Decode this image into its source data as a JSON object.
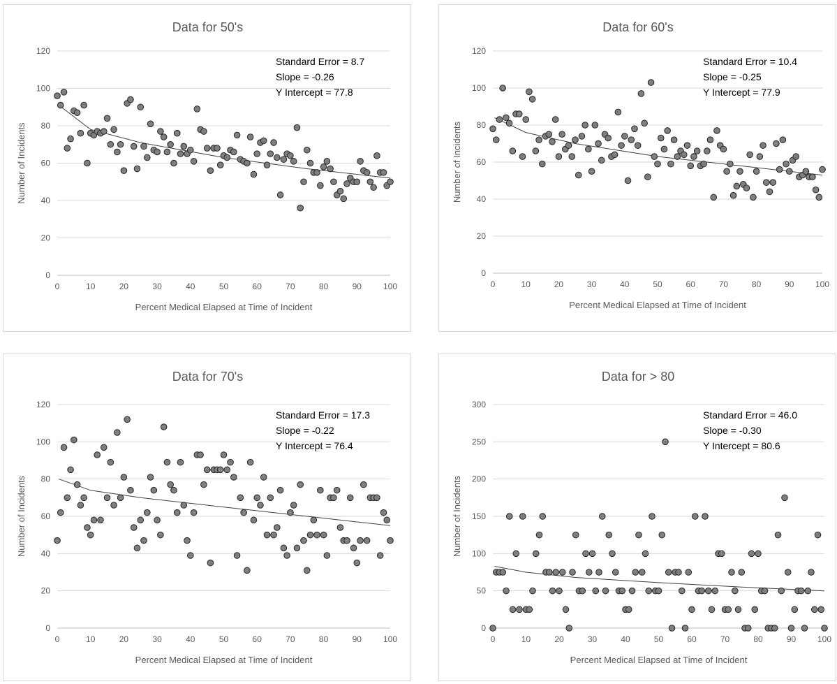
{
  "chart_data": [
    {
      "type": "scatter",
      "title": "Data for 50's",
      "xlabel": "Percent Medical Elapsed at Time of Incident",
      "ylabel": "Number of Incidents",
      "xlim": [
        0,
        100
      ],
      "ylim": [
        0,
        120
      ],
      "xticks": [
        0,
        10,
        20,
        30,
        40,
        50,
        60,
        70,
        80,
        90,
        100
      ],
      "yticks": [
        0,
        20,
        40,
        60,
        80,
        100,
        120
      ],
      "grid": "horizontal",
      "annotations": [
        "Standard Error = 8.7",
        "Slope = -0.26",
        "Y Intercept = 77.8"
      ],
      "trend": "logarithmic",
      "trend_points": [
        [
          0.5,
          91
        ],
        [
          10,
          78
        ],
        [
          25,
          71
        ],
        [
          50,
          63
        ],
        [
          75,
          57
        ],
        [
          100,
          52
        ]
      ],
      "x": [
        0,
        1,
        2,
        3,
        4,
        5,
        6,
        7,
        8,
        9,
        10,
        11,
        12,
        13,
        14,
        15,
        16,
        17,
        18,
        19,
        20,
        21,
        22,
        23,
        24,
        25,
        26,
        27,
        28,
        29,
        30,
        31,
        32,
        33,
        34,
        35,
        36,
        37,
        38,
        39,
        40,
        41,
        42,
        43,
        44,
        45,
        46,
        47,
        48,
        49,
        50,
        51,
        52,
        53,
        54,
        55,
        56,
        57,
        58,
        59,
        60,
        61,
        62,
        63,
        64,
        65,
        66,
        67,
        68,
        69,
        70,
        71,
        72,
        73,
        74,
        75,
        76,
        77,
        78,
        79,
        80,
        81,
        82,
        83,
        84,
        85,
        86,
        87,
        88,
        89,
        90,
        91,
        92,
        93,
        94,
        95,
        96,
        97,
        98,
        99,
        100
      ],
      "y": [
        96,
        91,
        98,
        68,
        73,
        88,
        87,
        76,
        91,
        60,
        76,
        75,
        77,
        76,
        77,
        84,
        70,
        78,
        66,
        70,
        56,
        92,
        94,
        69,
        57,
        90,
        69,
        63,
        81,
        67,
        66,
        77,
        74,
        66,
        70,
        60,
        76,
        65,
        69,
        65,
        67,
        61,
        89,
        78,
        77,
        68,
        56,
        68,
        68,
        59,
        64,
        63,
        67,
        66,
        75,
        62,
        61,
        60,
        74,
        54,
        65,
        71,
        72,
        59,
        65,
        71,
        63,
        43,
        62,
        65,
        64,
        61,
        79,
        36,
        50,
        67,
        60,
        55,
        55,
        48,
        58,
        61,
        57,
        50,
        43,
        45,
        41,
        49,
        52,
        50,
        50,
        61,
        56,
        55,
        50,
        47,
        64,
        55,
        55,
        48,
        50
      ]
    },
    {
      "type": "scatter",
      "title": "Data for 60's",
      "xlabel": "Percent Medical Elapsed at Time of Incident",
      "ylabel": "Number of Incidents",
      "xlim": [
        0,
        100
      ],
      "ylim": [
        0,
        120
      ],
      "xticks": [
        0,
        10,
        20,
        30,
        40,
        50,
        60,
        70,
        80,
        90,
        100
      ],
      "yticks": [
        0,
        20,
        40,
        60,
        80,
        100,
        120
      ],
      "grid": "horizontal",
      "annotations": [
        "Standard Error = 10.4",
        "Slope = -0.25",
        "Y Intercept = 77.9"
      ],
      "trend": "logarithmic",
      "trend_points": [
        [
          0.5,
          84
        ],
        [
          10,
          76
        ],
        [
          25,
          70
        ],
        [
          50,
          63
        ],
        [
          75,
          58
        ],
        [
          100,
          53
        ]
      ],
      "x": [
        0,
        1,
        2,
        3,
        4,
        5,
        6,
        7,
        8,
        9,
        10,
        11,
        12,
        13,
        14,
        15,
        16,
        17,
        18,
        19,
        20,
        21,
        22,
        23,
        24,
        25,
        26,
        27,
        28,
        29,
        30,
        31,
        32,
        33,
        34,
        35,
        36,
        37,
        38,
        39,
        40,
        41,
        42,
        43,
        44,
        45,
        46,
        47,
        48,
        49,
        50,
        51,
        52,
        53,
        54,
        55,
        56,
        57,
        58,
        59,
        60,
        61,
        62,
        63,
        64,
        65,
        66,
        67,
        68,
        69,
        70,
        71,
        72,
        73,
        74,
        75,
        76,
        77,
        78,
        79,
        80,
        81,
        82,
        83,
        84,
        85,
        86,
        87,
        88,
        89,
        90,
        91,
        92,
        93,
        94,
        95,
        96,
        97,
        98,
        99,
        100
      ],
      "y": [
        78,
        72,
        83,
        100,
        84,
        81,
        66,
        86,
        86,
        63,
        83,
        98,
        94,
        66,
        72,
        59,
        74,
        75,
        71,
        83,
        63,
        75,
        67,
        69,
        63,
        72,
        53,
        74,
        80,
        67,
        55,
        80,
        70,
        61,
        75,
        73,
        63,
        64,
        87,
        69,
        74,
        50,
        72,
        78,
        69,
        97,
        81,
        52,
        103,
        63,
        59,
        73,
        67,
        77,
        59,
        72,
        63,
        66,
        64,
        69,
        58,
        63,
        66,
        58,
        59,
        66,
        72,
        41,
        77,
        69,
        67,
        55,
        59,
        42,
        47,
        55,
        48,
        46,
        64,
        41,
        55,
        63,
        69,
        49,
        44,
        49,
        70,
        56,
        72,
        59,
        55,
        61,
        63,
        52,
        53,
        55,
        52,
        52,
        45,
        41,
        56
      ]
    },
    {
      "type": "scatter",
      "title": "Data for 70's",
      "xlabel": "Percent Medical Elapsed at Time of Incident",
      "ylabel": "Number of Incidents",
      "xlim": [
        0,
        100
      ],
      "ylim": [
        0,
        120
      ],
      "xticks": [
        0,
        10,
        20,
        30,
        40,
        50,
        60,
        70,
        80,
        90,
        100
      ],
      "yticks": [
        0,
        20,
        40,
        60,
        80,
        100,
        120
      ],
      "grid": "horizontal",
      "annotations": [
        "Standard Error = 17.3",
        "Slope = -0.22",
        "Y Intercept = 76.4"
      ],
      "trend": "logarithmic",
      "trend_points": [
        [
          0.5,
          80
        ],
        [
          10,
          74
        ],
        [
          25,
          70
        ],
        [
          50,
          65
        ],
        [
          75,
          60
        ],
        [
          100,
          55
        ]
      ],
      "x": [
        0,
        1,
        2,
        3,
        4,
        5,
        6,
        7,
        8,
        9,
        10,
        11,
        12,
        13,
        14,
        15,
        16,
        17,
        18,
        19,
        20,
        21,
        22,
        23,
        24,
        25,
        26,
        27,
        28,
        29,
        30,
        31,
        32,
        33,
        34,
        35,
        36,
        37,
        38,
        39,
        40,
        41,
        42,
        43,
        44,
        45,
        46,
        47,
        48,
        49,
        50,
        51,
        52,
        53,
        54,
        55,
        56,
        57,
        58,
        59,
        60,
        61,
        62,
        63,
        64,
        65,
        66,
        67,
        68,
        69,
        70,
        71,
        72,
        73,
        74,
        75,
        76,
        77,
        78,
        79,
        80,
        81,
        82,
        83,
        84,
        85,
        86,
        87,
        88,
        89,
        90,
        91,
        92,
        93,
        94,
        95,
        96,
        97,
        98,
        99,
        100
      ],
      "y": [
        47,
        62,
        97,
        70,
        85,
        101,
        77,
        66,
        70,
        54,
        50,
        58,
        93,
        58,
        97,
        70,
        89,
        66,
        105,
        70,
        81,
        112,
        74,
        54,
        43,
        58,
        47,
        62,
        81,
        74,
        58,
        50,
        108,
        89,
        77,
        74,
        62,
        89,
        66,
        47,
        39,
        62,
        93,
        93,
        77,
        85,
        35,
        85,
        85,
        85,
        93,
        85,
        89,
        81,
        39,
        70,
        62,
        31,
        89,
        58,
        70,
        66,
        81,
        50,
        70,
        50,
        54,
        74,
        43,
        39,
        62,
        66,
        43,
        77,
        47,
        31,
        50,
        58,
        50,
        74,
        50,
        39,
        70,
        70,
        74,
        54,
        47,
        47,
        70,
        43,
        35,
        47,
        77,
        47,
        70,
        70,
        70,
        39,
        62,
        58,
        47
      ]
    },
    {
      "type": "scatter",
      "title": "Data for > 80",
      "xlabel": "Percent Medical Elapsed at Time of Incident",
      "ylabel": "Number of Incidents",
      "xlim": [
        0,
        100
      ],
      "ylim": [
        0,
        300
      ],
      "xticks": [
        0,
        10,
        20,
        30,
        40,
        50,
        60,
        70,
        80,
        90,
        100
      ],
      "yticks": [
        0,
        50,
        100,
        150,
        200,
        250,
        300
      ],
      "grid": "horizontal",
      "annotations": [
        "Standard Error = 46.0",
        "Slope = -0.30",
        "Y Intercept = 80.6"
      ],
      "trend": "logarithmic",
      "trend_points": [
        [
          0.5,
          83
        ],
        [
          10,
          75
        ],
        [
          25,
          68
        ],
        [
          50,
          61
        ],
        [
          75,
          55
        ],
        [
          100,
          50
        ]
      ],
      "x": [
        0,
        1,
        2,
        3,
        4,
        5,
        6,
        7,
        8,
        9,
        10,
        11,
        12,
        13,
        14,
        15,
        16,
        17,
        18,
        19,
        20,
        21,
        22,
        23,
        24,
        25,
        26,
        27,
        28,
        29,
        30,
        31,
        32,
        33,
        34,
        35,
        36,
        37,
        38,
        39,
        40,
        41,
        42,
        43,
        44,
        45,
        46,
        47,
        48,
        49,
        50,
        51,
        52,
        53,
        54,
        55,
        56,
        57,
        58,
        59,
        60,
        61,
        62,
        63,
        64,
        65,
        66,
        67,
        68,
        69,
        70,
        71,
        72,
        73,
        74,
        75,
        76,
        77,
        78,
        79,
        80,
        81,
        82,
        83,
        84,
        85,
        86,
        87,
        88,
        89,
        90,
        91,
        92,
        93,
        94,
        95,
        96,
        97,
        98,
        99,
        100
      ],
      "y": [
        0,
        75,
        75,
        75,
        50,
        150,
        25,
        100,
        25,
        150,
        25,
        25,
        50,
        100,
        125,
        150,
        75,
        75,
        50,
        75,
        50,
        75,
        25,
        0,
        75,
        125,
        50,
        50,
        100,
        75,
        100,
        50,
        75,
        150,
        50,
        125,
        100,
        75,
        50,
        50,
        25,
        25,
        50,
        75,
        125,
        75,
        100,
        50,
        150,
        50,
        50,
        125,
        250,
        75,
        0,
        75,
        75,
        50,
        0,
        75,
        25,
        150,
        50,
        50,
        150,
        50,
        25,
        50,
        100,
        100,
        25,
        25,
        75,
        50,
        25,
        75,
        0,
        0,
        100,
        25,
        100,
        50,
        50,
        0,
        0,
        0,
        125,
        50,
        175,
        75,
        0,
        25,
        50,
        50,
        0,
        50,
        75,
        25,
        125,
        25,
        0
      ]
    }
  ]
}
